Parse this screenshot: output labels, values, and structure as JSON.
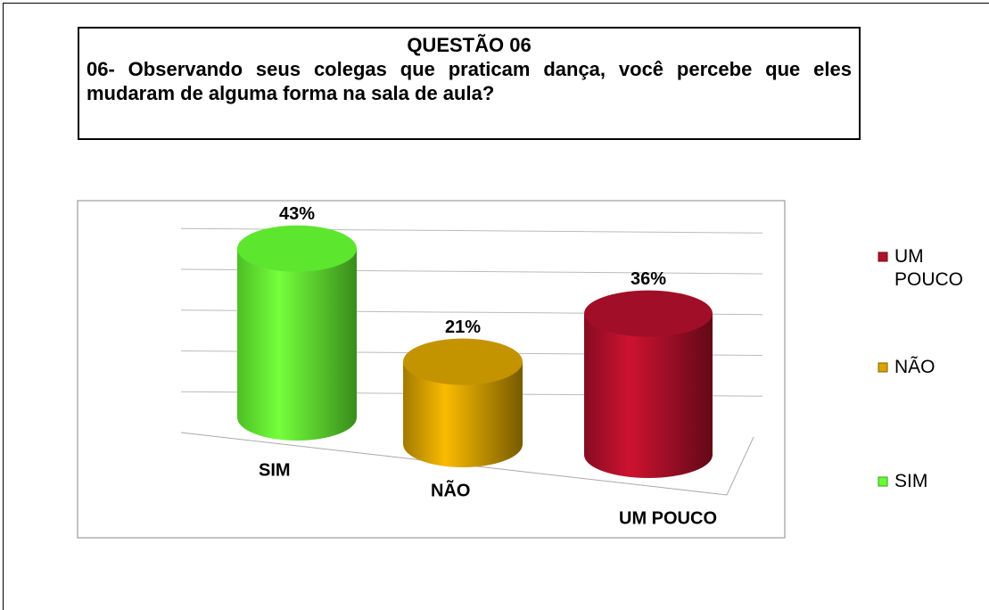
{
  "chart_data": {
    "type": "bar",
    "title": "QUESTÃO 06",
    "subtitle": "06- Observando seus colegas que praticam dança, você percebe que eles mudaram de alguma forma na sala de aula?",
    "categories": [
      "SIM",
      "NÃO",
      "UM POUCO"
    ],
    "values": [
      43,
      21,
      36
    ],
    "value_labels": [
      "43%",
      "21%",
      "36%"
    ],
    "colors": [
      "#66ff33",
      "#d9a300",
      "#b3102b"
    ],
    "ylim": [
      0,
      50
    ],
    "yticks": [
      0,
      10,
      20,
      30,
      40,
      50
    ],
    "grid": true,
    "legend": "right"
  }
}
